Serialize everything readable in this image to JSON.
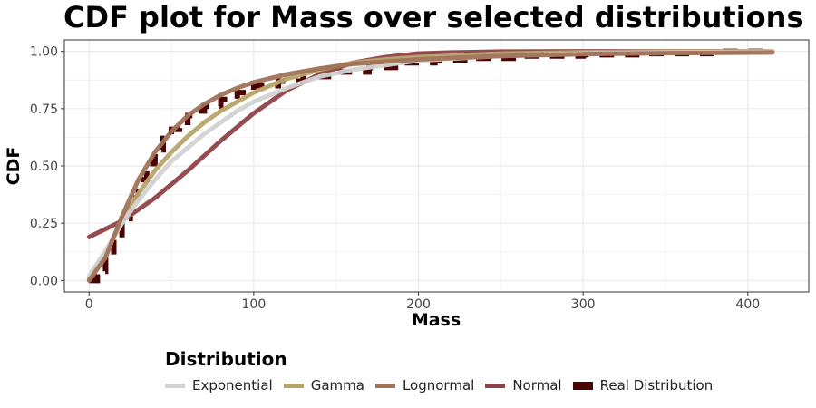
{
  "chart_data": {
    "type": "line",
    "title": "CDF plot for Mass over selected distributions",
    "xlabel": "Mass",
    "ylabel": "CDF",
    "xlim": [
      -15,
      437
    ],
    "ylim": [
      -0.05,
      1.05
    ],
    "x_ticks": [
      0,
      100,
      200,
      300,
      400
    ],
    "y_ticks": [
      0.0,
      0.25,
      0.5,
      0.75,
      1.0
    ],
    "x_tick_labels": [
      "0",
      "100",
      "200",
      "300",
      "400"
    ],
    "y_tick_labels": [
      "0.00",
      "0.25",
      "0.50",
      "0.75",
      "1.00"
    ],
    "grid": true,
    "legend_position": "bottom",
    "legend_title": "Distribution",
    "series": [
      {
        "name": "Exponential",
        "color": "#d3d3d3",
        "style": "solid",
        "x": [
          0,
          10,
          20,
          30,
          40,
          50,
          60,
          70,
          80,
          90,
          100,
          120,
          140,
          160,
          180,
          200,
          250,
          300,
          350,
          415
        ],
        "y": [
          0.02,
          0.13,
          0.25,
          0.35,
          0.44,
          0.52,
          0.58,
          0.64,
          0.69,
          0.74,
          0.78,
          0.84,
          0.89,
          0.92,
          0.94,
          0.96,
          0.98,
          0.99,
          0.995,
          0.999
        ]
      },
      {
        "name": "Gamma",
        "color": "#b8a46a",
        "style": "solid",
        "x": [
          0,
          10,
          20,
          30,
          40,
          50,
          60,
          70,
          80,
          90,
          100,
          120,
          140,
          160,
          180,
          200,
          250,
          300,
          350,
          415
        ],
        "y": [
          0.01,
          0.12,
          0.26,
          0.38,
          0.48,
          0.56,
          0.63,
          0.69,
          0.74,
          0.78,
          0.82,
          0.88,
          0.92,
          0.95,
          0.965,
          0.975,
          0.99,
          0.996,
          0.999,
          1.0
        ]
      },
      {
        "name": "Lognormal",
        "color": "#a0725a",
        "style": "solid",
        "x": [
          0,
          10,
          20,
          30,
          40,
          50,
          60,
          70,
          80,
          90,
          100,
          120,
          140,
          160,
          180,
          200,
          250,
          300,
          350,
          415
        ],
        "y": [
          0.0,
          0.1,
          0.28,
          0.44,
          0.56,
          0.65,
          0.72,
          0.77,
          0.81,
          0.84,
          0.865,
          0.9,
          0.925,
          0.945,
          0.955,
          0.965,
          0.98,
          0.988,
          0.992,
          0.995
        ]
      },
      {
        "name": "Normal",
        "color": "#8e4248",
        "style": "solid",
        "x": [
          0,
          20,
          40,
          60,
          80,
          100,
          120,
          140,
          160,
          180,
          200,
          220,
          250,
          300,
          350,
          415
        ],
        "y": [
          0.19,
          0.26,
          0.36,
          0.48,
          0.61,
          0.73,
          0.83,
          0.9,
          0.95,
          0.975,
          0.99,
          0.995,
          0.999,
          1.0,
          1.0,
          1.0
        ]
      },
      {
        "name": "Real Distribution",
        "color": "#4a0404",
        "style": "step",
        "x": [
          0,
          5,
          10,
          15,
          20,
          25,
          30,
          35,
          40,
          45,
          50,
          55,
          60,
          65,
          70,
          80,
          90,
          100,
          115,
          130,
          150,
          170,
          190,
          210,
          230,
          260,
          300,
          340,
          380,
          415
        ],
        "y": [
          0.0,
          0.04,
          0.1,
          0.18,
          0.27,
          0.36,
          0.44,
          0.51,
          0.57,
          0.62,
          0.66,
          0.69,
          0.72,
          0.74,
          0.76,
          0.79,
          0.82,
          0.85,
          0.87,
          0.89,
          0.91,
          0.93,
          0.95,
          0.96,
          0.97,
          0.98,
          0.985,
          0.99,
          1.0,
          1.0
        ]
      }
    ]
  }
}
